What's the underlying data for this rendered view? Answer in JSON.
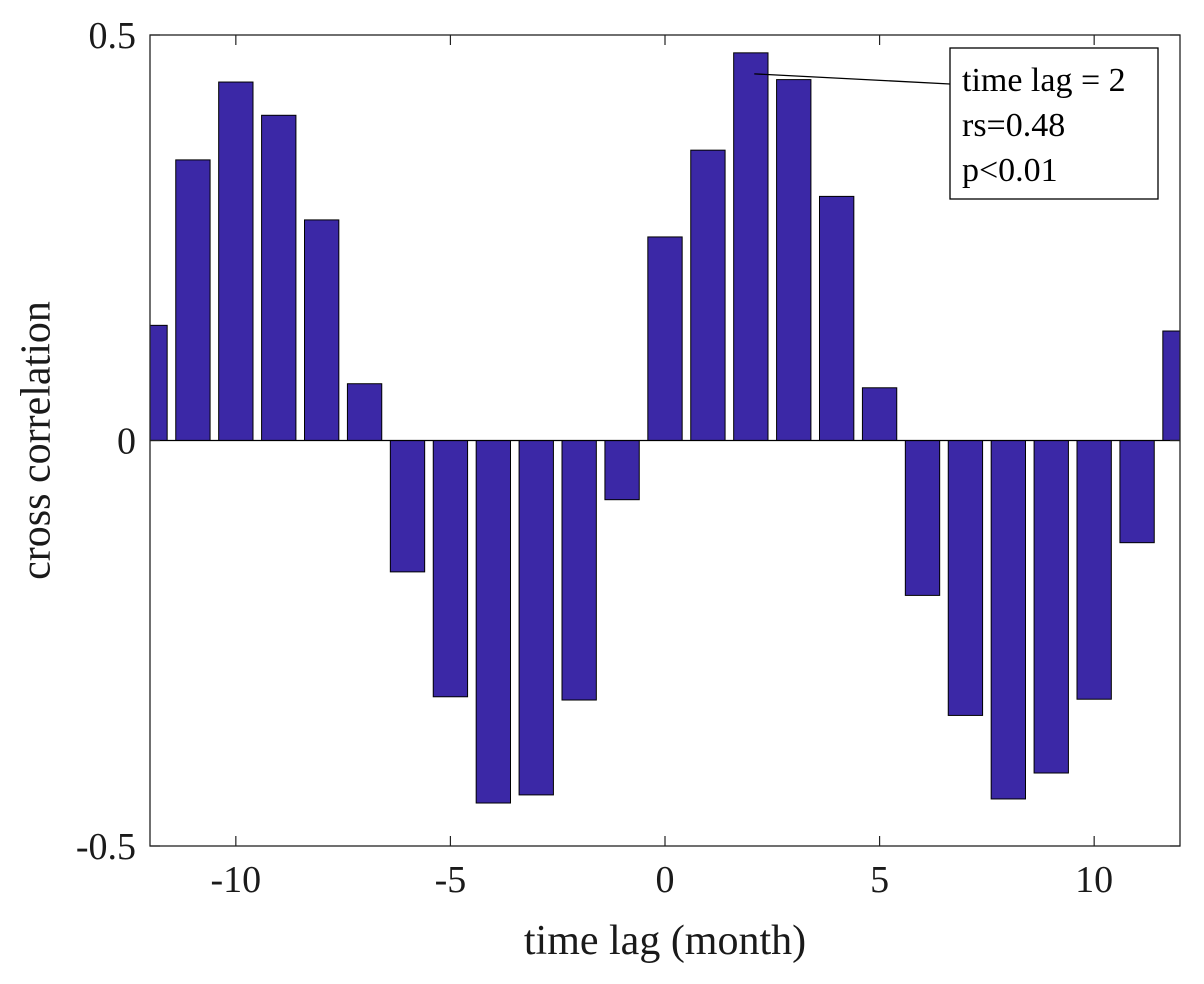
{
  "chart_data": {
    "type": "bar",
    "xlabel": "time lag (month)",
    "ylabel": "cross correlation",
    "xlim": [
      -12,
      12
    ],
    "ylim": [
      -0.5,
      0.5
    ],
    "x_ticks": [
      -10,
      -5,
      0,
      5,
      10
    ],
    "y_ticks": [
      -0.5,
      0,
      0.5
    ],
    "x_tick_labels": [
      "-10",
      "-5",
      "0",
      "5",
      "10"
    ],
    "y_tick_labels": [
      "-0.5",
      "0",
      "0.5"
    ],
    "grid": false,
    "bar_color": "#3b28a6",
    "x": [
      -12,
      -11,
      -10,
      -9,
      -8,
      -7,
      -6,
      -5,
      -4,
      -3,
      -2,
      -1,
      0,
      1,
      2,
      3,
      4,
      5,
      6,
      7,
      8,
      9,
      10,
      11,
      12
    ],
    "values": [
      0.142,
      0.346,
      0.442,
      0.401,
      0.272,
      0.07,
      -0.162,
      -0.316,
      -0.447,
      -0.437,
      -0.32,
      -0.073,
      0.251,
      0.358,
      0.478,
      0.445,
      0.301,
      0.065,
      -0.191,
      -0.339,
      -0.442,
      -0.41,
      -0.319,
      -0.126,
      0.135
    ],
    "annotation": {
      "lines": [
        "time lag = 2",
        "rs=0.48",
        "p<0.01"
      ],
      "target_x": 2,
      "target_y": 0.478
    }
  }
}
